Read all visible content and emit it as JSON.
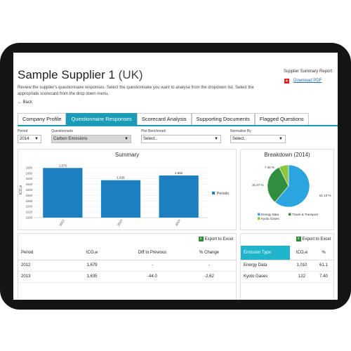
{
  "header": {
    "title": "Sample Supplier 1",
    "title_suffix": "(UK)",
    "description": "Review the supplier's questionnaire responses. Select the questionnaire you want to analyse from the dropdown list. Select the appropriate scorecard from the drop down menu.",
    "report_title": "Supplier Summary Report",
    "download_label": "Download PDF",
    "back_label": "Back"
  },
  "tabs": [
    {
      "label": "Company Profile"
    },
    {
      "label": "Questionnaire Responses",
      "active": true
    },
    {
      "label": "Scorecard Analysis"
    },
    {
      "label": "Supporting Documents"
    },
    {
      "label": "Flagged Questions"
    }
  ],
  "filters": {
    "period": {
      "label": "Period",
      "value": "2014"
    },
    "questionnaire": {
      "label": "Questionnaire",
      "value": "Carbon Emissions"
    },
    "benchmark": {
      "label": "Plot Benchmark",
      "value": "Select.."
    },
    "normalise": {
      "label": "Normalise By",
      "value": "Select.."
    }
  },
  "summary_panel": {
    "title": "Summary"
  },
  "breakdown_panel": {
    "title": "Breakdown (2014)"
  },
  "chart_data": [
    {
      "type": "bar",
      "title": "Summary",
      "ylabel": "tCO₂e",
      "ylim": [
        1500,
        1700
      ],
      "yticks": [
        1500,
        1520,
        1540,
        1560,
        1580,
        1600,
        1620,
        1640,
        1660,
        1680
      ],
      "categories": [
        "2012",
        "2013",
        "2014"
      ],
      "series": [
        {
          "name": "Periods",
          "values": [
            1679,
            1635,
            1652
          ]
        }
      ],
      "data_labels": [
        "1,679",
        "1,635",
        "1,652"
      ],
      "bar_color": "#1b7fc0",
      "legend": "right"
    },
    {
      "type": "pie",
      "title": "Breakdown (2014)",
      "slices": [
        {
          "label": "Energy Data",
          "value": 61.12,
          "display": "61.12 %",
          "color": "#2ba4e0"
        },
        {
          "label": "Travel & Transport",
          "value": 31.47,
          "display": "31.47 %",
          "color": "#2f8f3e"
        },
        {
          "label": "Kyoto Gases",
          "value": 7.4,
          "display": "7.40 %",
          "color": "#8cc63f"
        }
      ],
      "legend": "bottom"
    }
  ],
  "export_label": "Export to Excel",
  "periods_table": {
    "headers": [
      "Period",
      "tCO₂e",
      "Diff to Previous",
      "% Change"
    ],
    "rows": [
      [
        "2012",
        "1,679",
        "-",
        "-"
      ],
      [
        "2013",
        "1,635",
        "-44.0",
        "-2.62"
      ]
    ]
  },
  "emission_table": {
    "headers": [
      "Emission Type",
      "tCO₂e",
      "%"
    ],
    "rows": [
      [
        "Energy Data",
        "1,010",
        "61.1"
      ],
      [
        "Kyoto Gases",
        "122",
        "7.40"
      ]
    ]
  },
  "colors": {
    "accent": "#1a9bb7",
    "bar": "#1b7fc0",
    "highlight": "#1fb3cc"
  }
}
